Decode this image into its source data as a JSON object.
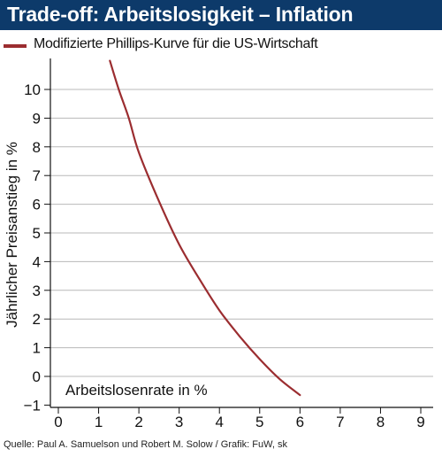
{
  "title": "Trade-off: Arbeitslosigkeit – Inflation",
  "legend": {
    "label": "Modifizierte Phillips-Kurve für die US-Wirtschaft",
    "color": "#9b2d30"
  },
  "source": "Quelle: Paul A. Samuelson und Robert M. Solow / Grafik: FuW, sk",
  "colors": {
    "title_background": "#0d3a6a",
    "gridline": "#b8b8b8",
    "curve": "#9b2d30"
  },
  "chart_data": {
    "type": "line",
    "title": "Trade-off: Arbeitslosigkeit – Inflation",
    "xlabel": "Arbeitslosenrate in %",
    "ylabel": "Jährlicher Preisanstieg in %",
    "xlim": [
      0,
      9
    ],
    "ylim": [
      -1,
      11
    ],
    "x_ticks": [
      "0",
      "1",
      "2",
      "3",
      "4",
      "5",
      "6",
      "7",
      "8",
      "9"
    ],
    "y_ticks": [
      "10",
      "9",
      "8",
      "7",
      "6",
      "5",
      "4",
      "3",
      "2",
      "1",
      "0",
      "−1"
    ],
    "grid": "horizontal",
    "legend_position": "top-left",
    "series": [
      {
        "name": "Modifizierte Phillips-Kurve für die US-Wirtschaft",
        "x": [
          1.28,
          1.5,
          1.75,
          2.0,
          2.5,
          3.0,
          3.5,
          4.0,
          4.5,
          5.0,
          5.5,
          6.0
        ],
        "y": [
          11.0,
          10.0,
          9.0,
          7.8,
          6.1,
          4.6,
          3.4,
          2.3,
          1.4,
          0.6,
          -0.1,
          -0.65
        ]
      }
    ]
  }
}
